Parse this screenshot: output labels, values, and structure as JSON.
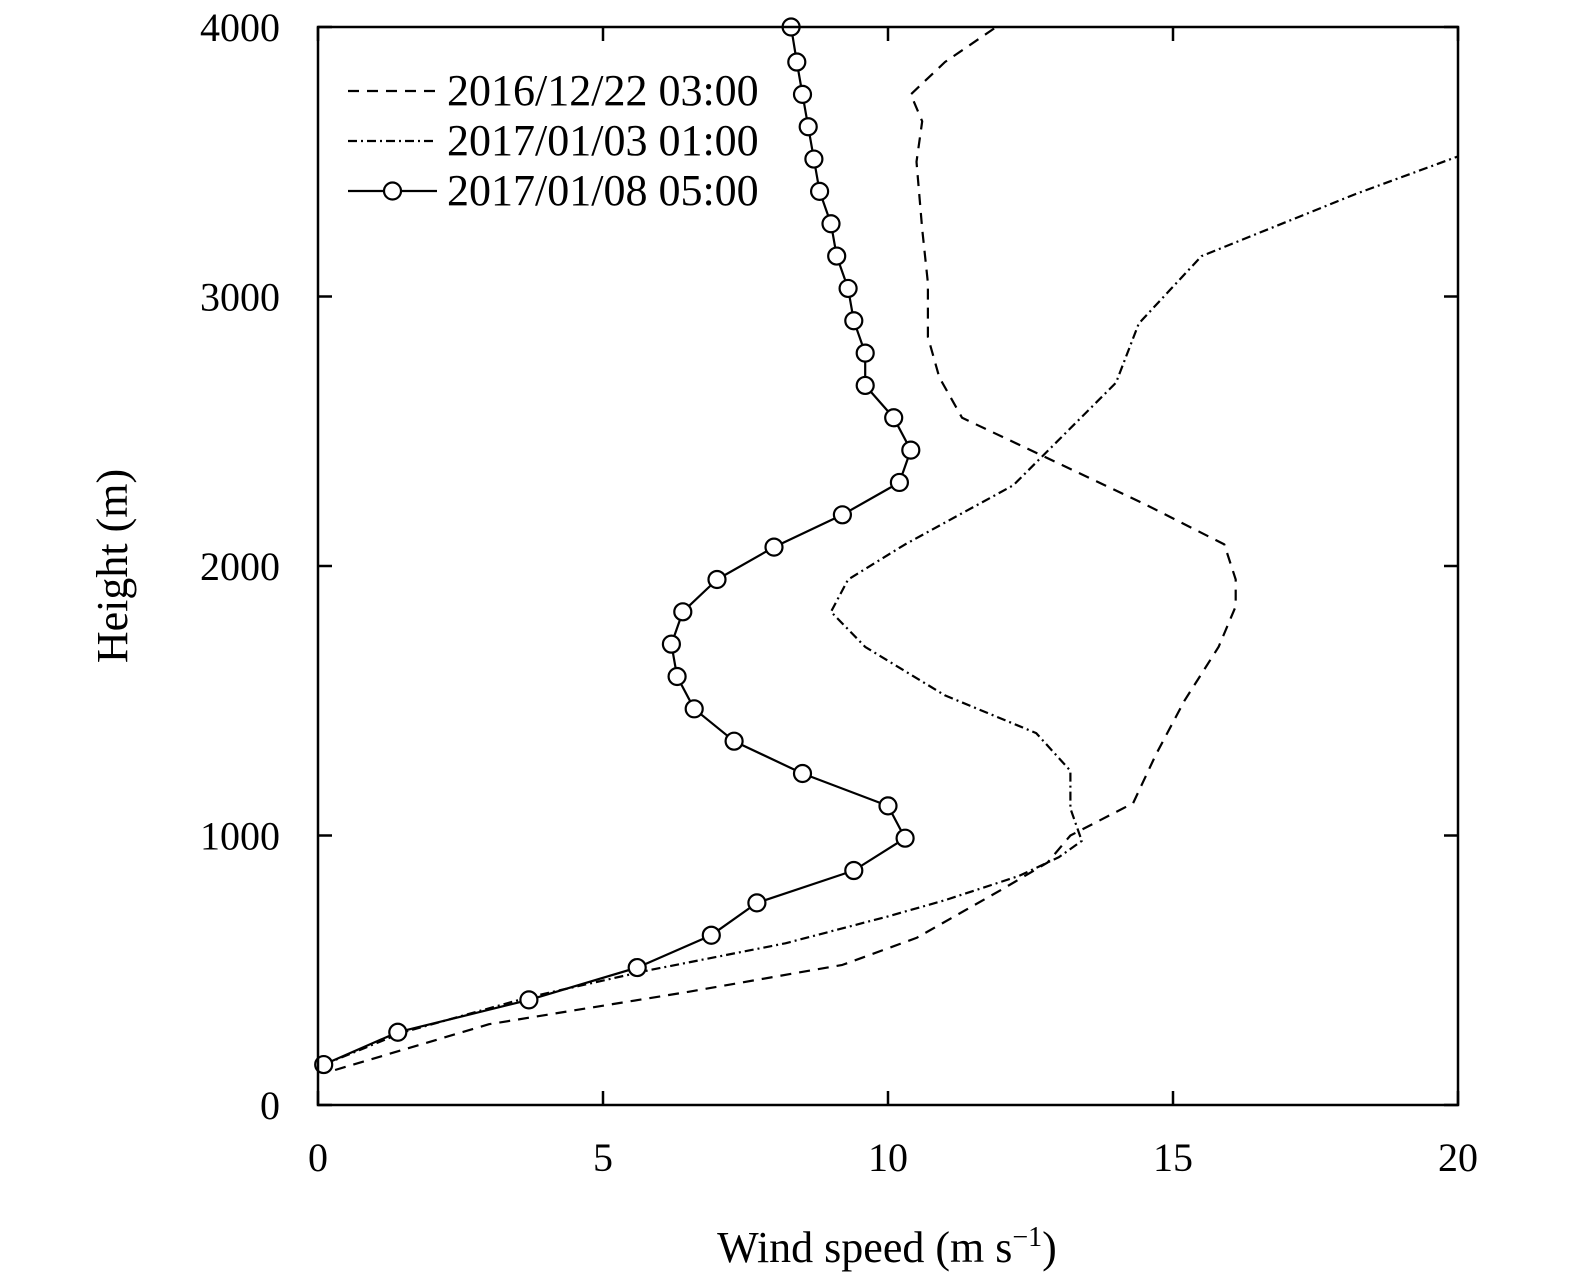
{
  "chart_data": {
    "type": "line",
    "xlabel": "Wind speed (m s",
    "xlabel_sup": "−1",
    "xlabel_end": ")",
    "ylabel": "Height (m)",
    "xlim": [
      0,
      20
    ],
    "ylim": [
      0,
      4000
    ],
    "xticks": [
      0,
      5,
      10,
      15,
      20
    ],
    "xtick_labels": [
      "0",
      "5",
      "10",
      "15",
      "20"
    ],
    "yticks": [
      0,
      1000,
      2000,
      3000,
      4000
    ],
    "ytick_labels": [
      "0",
      "1000",
      "2000",
      "3000",
      "4000"
    ],
    "grid": false,
    "legend_position": "top-left",
    "series": [
      {
        "name": "2016/12/22 03:00",
        "style": "dashed",
        "color": "#000000",
        "x": [
          0.3,
          3.0,
          6.5,
          9.2,
          10.5,
          12.0,
          12.8,
          13.2,
          14.3,
          14.7,
          15.2,
          15.8,
          16.1,
          16.1,
          15.9,
          14.5,
          13.0,
          11.3,
          10.9,
          10.7,
          10.7,
          10.6,
          10.5,
          10.6,
          10.4,
          11.0,
          11.9
        ],
        "y": [
          130,
          300,
          420,
          520,
          620,
          800,
          900,
          1000,
          1120,
          1300,
          1500,
          1700,
          1850,
          1950,
          2080,
          2230,
          2380,
          2550,
          2700,
          2850,
          3050,
          3250,
          3500,
          3650,
          3750,
          3870,
          4000
        ]
      },
      {
        "name": "2017/01/03 01:00",
        "style": "dashdot",
        "color": "#000000",
        "x": [
          0.1,
          1.5,
          3.7,
          5.8,
          8.2,
          10.0,
          11.0,
          12.3,
          13.0,
          13.4,
          13.2,
          13.2,
          12.6,
          11.0,
          9.6,
          9.0,
          9.3,
          10.3,
          12.2,
          14.0,
          14.4,
          15.5,
          18.2,
          20.0
        ],
        "y": [
          150,
          270,
          400,
          500,
          600,
          700,
          760,
          850,
          920,
          980,
          1100,
          1240,
          1380,
          1520,
          1700,
          1830,
          1950,
          2080,
          2300,
          2680,
          2900,
          3150,
          3380,
          3520
        ]
      },
      {
        "name": "2017/01/08 05:00",
        "style": "solid-circle",
        "color": "#000000",
        "x": [
          0.1,
          1.4,
          3.7,
          5.6,
          6.9,
          7.7,
          9.4,
          10.3,
          10.0,
          8.5,
          7.3,
          6.6,
          6.3,
          6.2,
          6.4,
          7.0,
          8.0,
          9.2,
          10.2,
          10.4,
          10.1,
          9.6,
          9.6,
          9.4,
          9.3,
          9.1,
          9.0,
          8.8,
          8.7,
          8.6,
          8.5,
          8.4,
          8.3
        ],
        "y": [
          150,
          270,
          390,
          510,
          630,
          750,
          870,
          990,
          1110,
          1230,
          1350,
          1470,
          1590,
          1710,
          1830,
          1950,
          2070,
          2190,
          2310,
          2430,
          2550,
          2670,
          2790,
          2910,
          3030,
          3150,
          3270,
          3390,
          3510,
          3630,
          3750,
          3870,
          4000
        ]
      }
    ]
  }
}
